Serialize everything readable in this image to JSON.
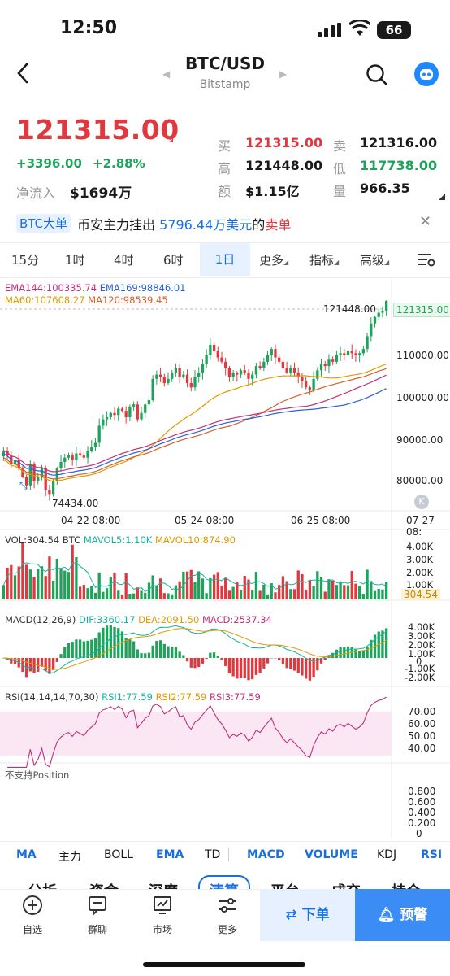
{
  "status": {
    "time": "12:50",
    "battery": "66"
  },
  "header": {
    "pair": "BTC/USD",
    "exchange": "Bitstamp"
  },
  "price": {
    "last": "121315.00",
    "change_abs": "+3396.00",
    "change_pct": "+2.88%",
    "inflow_label": "净流入",
    "inflow_value": "$1694万"
  },
  "stats": [
    {
      "label": "买",
      "value": "121315.00",
      "color": "#e0383e"
    },
    {
      "label": "卖",
      "value": "121316.00",
      "color": "#1a1a1a"
    },
    {
      "label": "高",
      "value": "121448.00",
      "color": "#1a1a1a"
    },
    {
      "label": "低",
      "value": "117738.00",
      "color": "#1ea35a"
    },
    {
      "label": "额",
      "value": "$1.15亿",
      "color": "#1a1a1a"
    },
    {
      "label": "量",
      "value": "966.35",
      "color": "#1a1a1a"
    }
  ],
  "announcement": {
    "tag": "BTC大单",
    "pre": "币安主力挂出",
    "amount": "5796.44",
    "unit": "万美元",
    "pre2": "的",
    "action": "卖单"
  },
  "intervals": [
    "15分",
    "1时",
    "4时",
    "6时",
    "1日",
    "更多",
    "指标",
    "高级"
  ],
  "active_interval": "1日",
  "overlay": {
    "ema144": "EMA144:100335.74",
    "ema169": "EMA169:98846.01",
    "ma60": "MA60:107608.27",
    "ma120": "MA120:98539.45",
    "high_mark": "121448.00",
    "low_mark": "74434.00",
    "current_tag": "121315.00"
  },
  "price_axis": [
    "110000.00",
    "100000.00",
    "90000.00",
    "80000.00"
  ],
  "date_axis": [
    "04-22 08:00",
    "05-24 08:00",
    "06-25 08:00",
    "07-27 08:"
  ],
  "volume": {
    "label": "VOL:304.54 BTC",
    "mavol5": "MAVOL5:1.10K",
    "mavol10": "MAVOL10:874.90",
    "axis": [
      "4.00K",
      "3.00K",
      "2.00K",
      "1.00K"
    ],
    "current": "304.54"
  },
  "macd": {
    "label": "MACD(12,26,9)",
    "dif": "DIF:3360.17",
    "dea": "DEA:2091.50",
    "macd": "MACD:2537.34",
    "axis": [
      "4.00K",
      "3.00K",
      "2.00K",
      "1.00K",
      "0",
      "-1.00K",
      "-2.00K"
    ]
  },
  "rsi": {
    "label": "RSI(14,14,14,70,30)",
    "rsi1": "RSI1:77.59",
    "rsi2": "RSI2:77.59",
    "rsi3": "RSI3:77.59",
    "axis": [
      "70.00",
      "60.00",
      "50.00",
      "40.00"
    ]
  },
  "position": {
    "label": "不支持Position",
    "axis": [
      "0.800",
      "0.600",
      "0.400",
      "0.200",
      "0"
    ]
  },
  "indicator_tabs": [
    "MA",
    "主力",
    "BOLL",
    "EMA",
    "TD",
    "MACD",
    "VOLUME",
    "KDJ",
    "RSI"
  ],
  "section_tabs": [
    "分析",
    "资金",
    "深度",
    "清算",
    "平台",
    "成交",
    "持仓"
  ],
  "bottom_nav": [
    "自选",
    "群聊",
    "市场",
    "更多"
  ],
  "actions": {
    "order": "下单",
    "alert": "预警"
  },
  "colors": {
    "up": "#1ea35a",
    "down": "#e0383e",
    "accent": "#1a6fe0"
  },
  "chart_data": {
    "type": "candlestick",
    "interval": "1日",
    "high": 121448.0,
    "low": 74434.0,
    "last": 121315.0,
    "ylim": [
      73000,
      123000
    ],
    "x_ticks": [
      "04-22 08:00",
      "05-24 08:00",
      "06-25 08:00",
      "07-27 08:"
    ],
    "closes": [
      86000,
      85000,
      83000,
      84000,
      82000,
      80000,
      78000,
      83000,
      79000,
      80000,
      82000,
      77000,
      76000,
      79000,
      82000,
      83500,
      84500,
      85000,
      84000,
      85500,
      85000,
      84500,
      86000,
      87000,
      88000,
      92000,
      93500,
      94000,
      95000,
      94500,
      96000,
      95500,
      94000,
      96500,
      97000,
      93500,
      95000,
      97000,
      98000,
      103000,
      104000,
      103500,
      102000,
      103000,
      104500,
      105500,
      103500,
      104000,
      102000,
      101000,
      103500,
      104500,
      106500,
      108500,
      111000,
      109500,
      108000,
      107000,
      105500,
      103500,
      104500,
      104000,
      105000,
      104500,
      103000,
      104000,
      106000,
      105500,
      107000,
      108500,
      110000,
      108000,
      107000,
      105500,
      104500,
      105500,
      104500,
      103500,
      102500,
      101000,
      100500,
      103000,
      105000,
      106500,
      106000,
      107500,
      107000,
      108500,
      109000,
      108500,
      109500,
      109000,
      108500,
      109000,
      110000,
      113000,
      116000,
      117500,
      118500,
      119000,
      121315
    ]
  }
}
